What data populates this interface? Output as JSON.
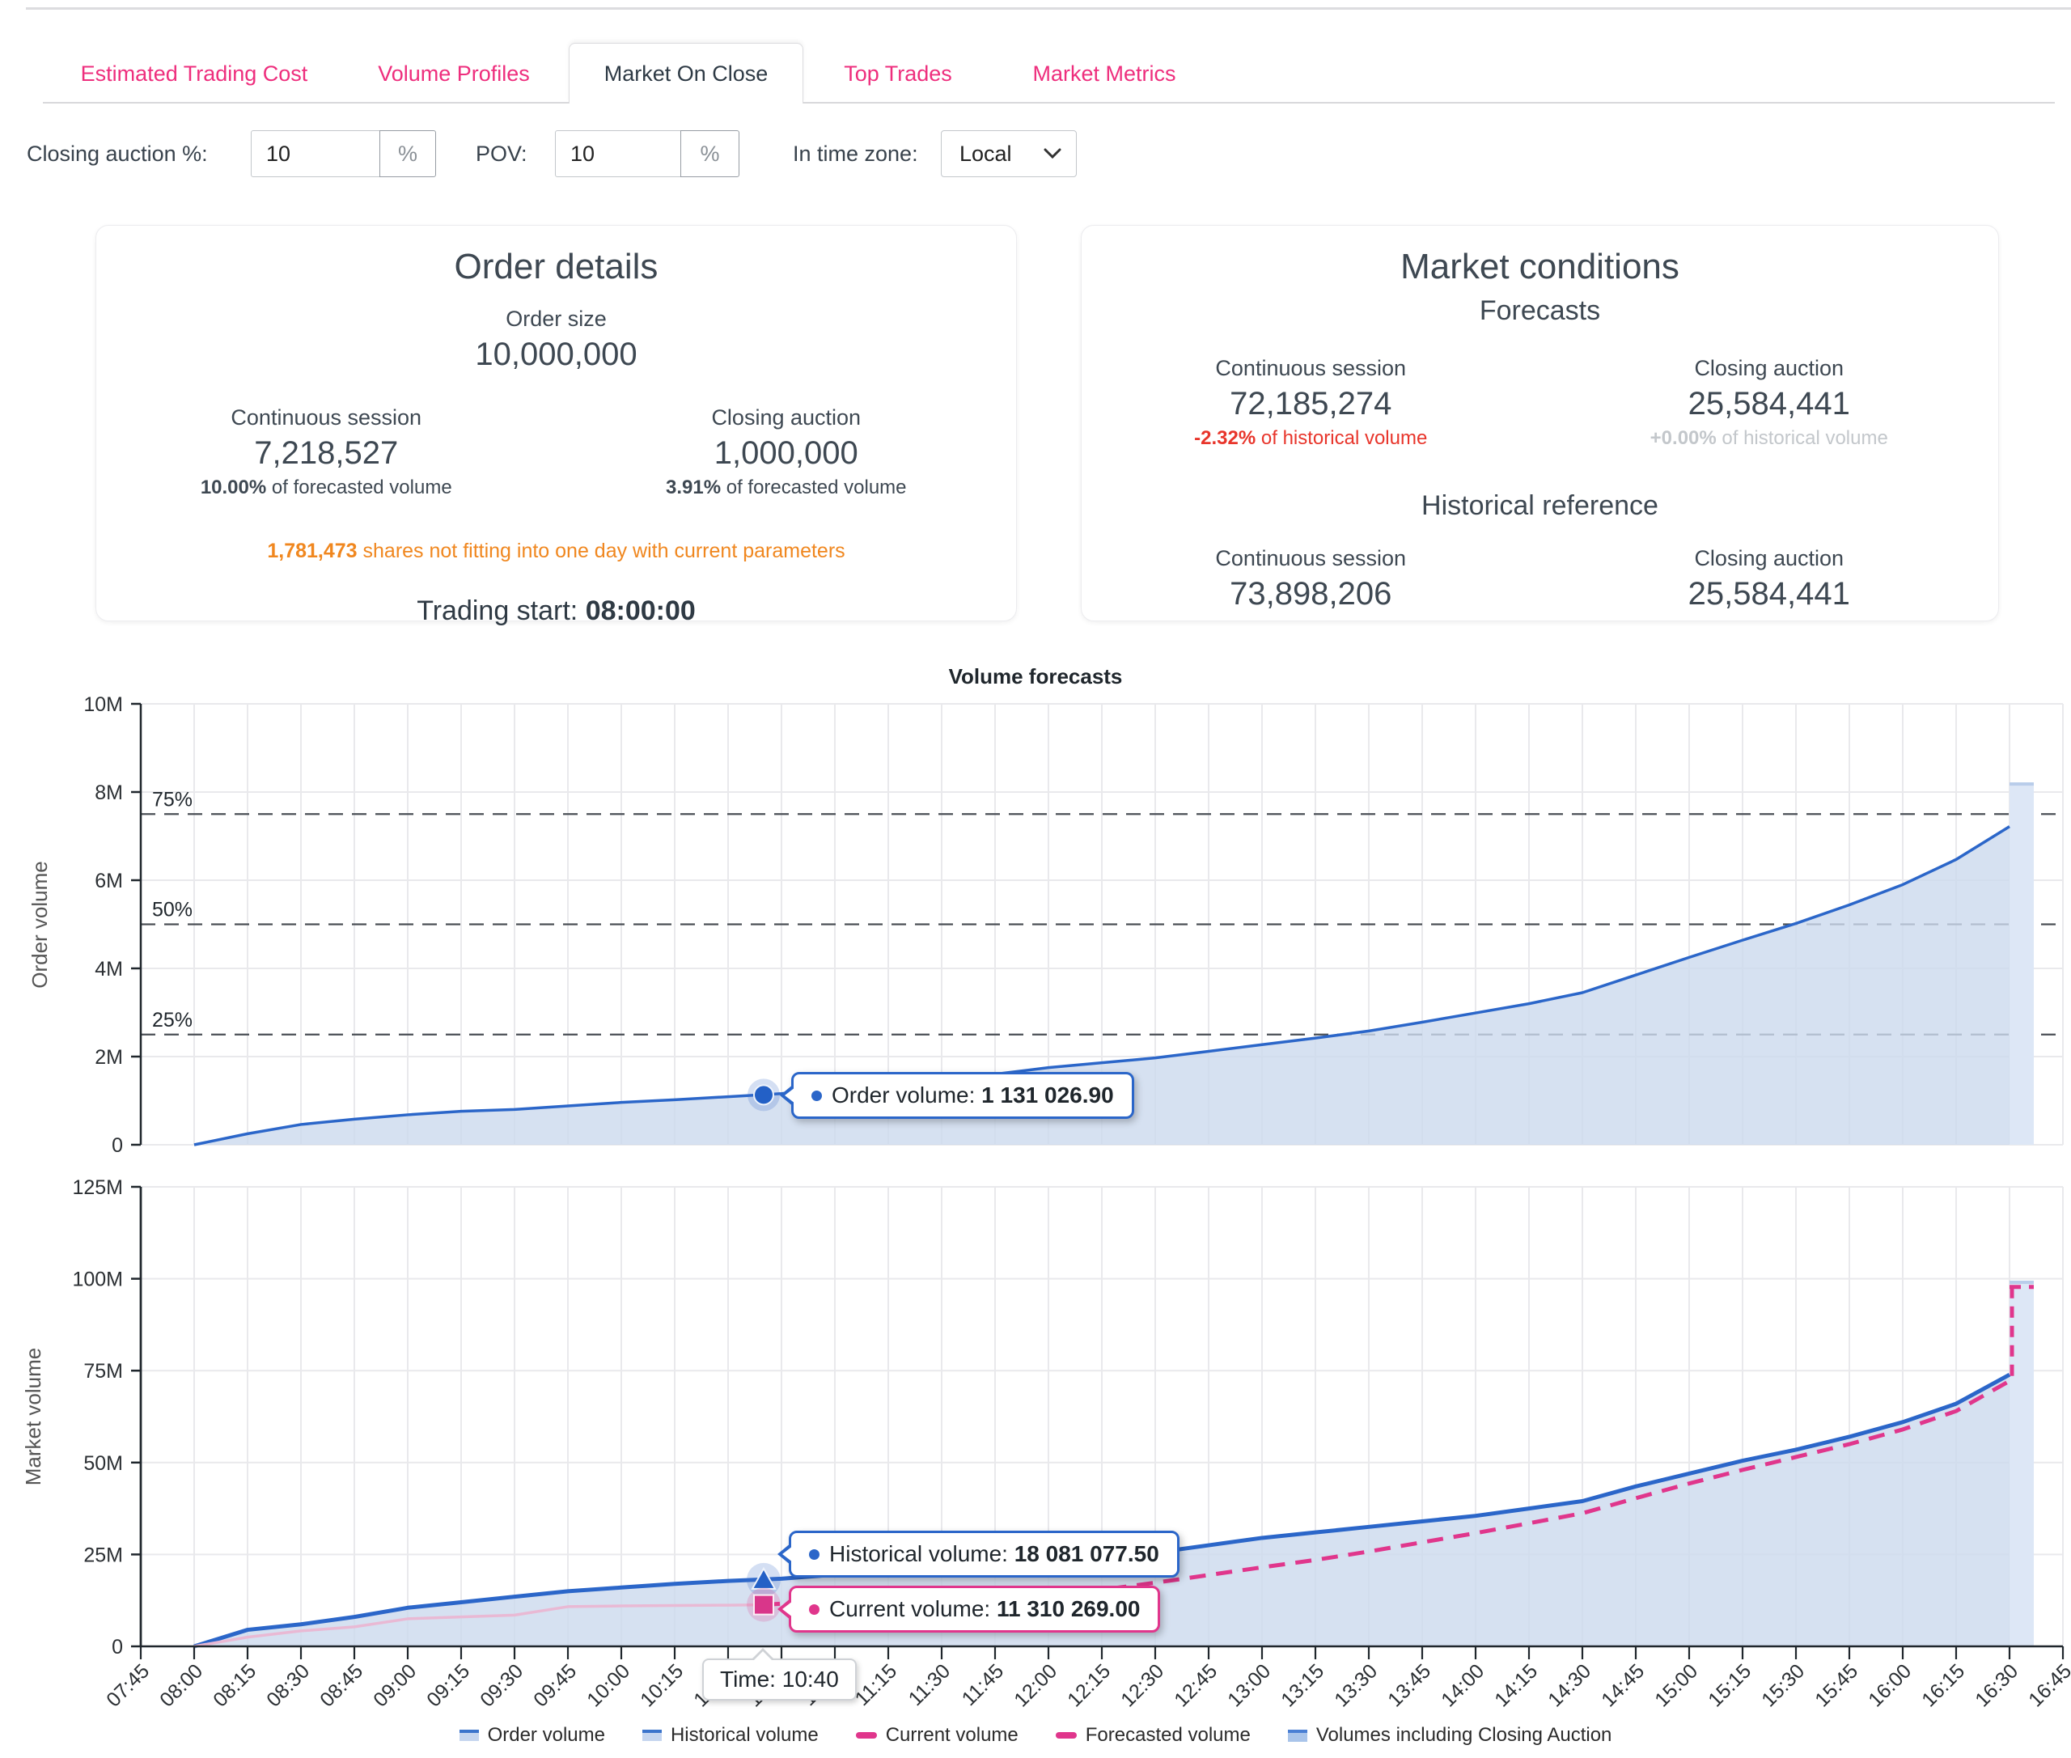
{
  "tabs": {
    "items": [
      {
        "label": "Estimated Trading Cost",
        "active": false
      },
      {
        "label": "Volume Profiles",
        "active": false
      },
      {
        "label": "Market On Close",
        "active": true
      },
      {
        "label": "Top Trades",
        "active": false
      },
      {
        "label": "Market Metrics",
        "active": false
      }
    ]
  },
  "controls": {
    "closing_auction": {
      "label": "Closing auction %:",
      "value": "10",
      "suffix": "%"
    },
    "pov": {
      "label": "POV:",
      "value": "10",
      "suffix": "%"
    },
    "timezone": {
      "label": "In time zone:",
      "value": "Local"
    }
  },
  "cards": {
    "order_details": {
      "title": "Order details",
      "order_size_label": "Order size",
      "order_size_value": "10,000,000",
      "continuous": {
        "label": "Continuous session",
        "value": "7,218,527",
        "pct": "10.00%",
        "pct_rest": " of forecasted volume"
      },
      "closing": {
        "label": "Closing auction",
        "value": "1,000,000",
        "pct": "3.91%",
        "pct_rest": " of forecasted volume"
      },
      "warning_value": "1,781,473",
      "warning_rest": " shares not fitting into one day with current parameters",
      "trading_start_label": "Trading start: ",
      "trading_start_value": "08:00:00"
    },
    "market_conditions": {
      "title": "Market conditions",
      "forecasts_label": "Forecasts",
      "forecast_continuous": {
        "label": "Continuous session",
        "value": "72,185,274",
        "pct": "-2.32%",
        "pct_rest": " of historical volume"
      },
      "forecast_closing": {
        "label": "Closing auction",
        "value": "25,584,441",
        "pct": "+0.00%",
        "pct_rest": " of historical volume"
      },
      "historical_label": "Historical reference",
      "hist_continuous": {
        "label": "Continuous session",
        "value": "73,898,206"
      },
      "hist_closing": {
        "label": "Closing auction",
        "value": "25,584,441"
      }
    }
  },
  "chart": {
    "title": "Volume forecasts",
    "tooltips": {
      "order": {
        "label": "Order volume: ",
        "value": "1 131 026.90"
      },
      "historical": {
        "label": "Historical volume: ",
        "value": "18 081 077.50"
      },
      "current": {
        "label": "Current volume: ",
        "value": "11 310 269.00"
      },
      "time": {
        "label": "Time: ",
        "value": "10:40"
      }
    },
    "legend": [
      {
        "label": "Order volume",
        "swatch": "area"
      },
      {
        "label": "Historical volume",
        "swatch": "area"
      },
      {
        "label": "Current volume",
        "swatch": "dash"
      },
      {
        "label": "Forecasted volume",
        "swatch": "dash"
      },
      {
        "label": "Volumes including Closing Auction",
        "swatch": "bar"
      }
    ],
    "colors": {
      "accent_pink": "#ee2e7d",
      "line_blue": "#2b66c9",
      "forecast_pink": "#e0368c",
      "current_pink": "#e9b9d4",
      "area_fill": "#ccd9ee",
      "bar_fill": "#dde7f6",
      "warning_orange": "#f0871f",
      "negative_red": "#e8352b"
    }
  },
  "chart_data": [
    {
      "type": "area",
      "title": "Volume forecasts",
      "ylabel": "Order volume",
      "ylim": [
        0,
        10000000
      ],
      "ytick_values": [
        0,
        2000000,
        4000000,
        6000000,
        8000000,
        10000000
      ],
      "ytick_labels": [
        "0",
        "2M",
        "4M",
        "6M",
        "8M",
        "10M"
      ],
      "x_axis_times": [
        "07:45",
        "08:00",
        "08:15",
        "08:30",
        "08:45",
        "09:00",
        "09:15",
        "09:30",
        "09:45",
        "10:00",
        "10:15",
        "10:30",
        "10:45",
        "11:00",
        "11:15",
        "11:30",
        "11:45",
        "12:00",
        "12:15",
        "12:30",
        "12:45",
        "13:00",
        "13:15",
        "13:30",
        "13:45",
        "14:00",
        "14:15",
        "14:30",
        "14:45",
        "15:00",
        "15:15",
        "15:30",
        "15:45",
        "16:00",
        "16:15",
        "16:30",
        "16:45"
      ],
      "reference_lines": [
        {
          "label": "25%",
          "value": 2500000
        },
        {
          "label": "50%",
          "value": 5000000
        },
        {
          "label": "75%",
          "value": 7500000
        }
      ],
      "series": [
        {
          "name": "Order volume",
          "times": [
            "08:00",
            "08:15",
            "08:30",
            "08:45",
            "09:00",
            "09:15",
            "09:30",
            "09:45",
            "10:00",
            "10:15",
            "10:30",
            "10:45",
            "11:00",
            "11:15",
            "11:30",
            "11:45",
            "12:00",
            "12:15",
            "12:30",
            "12:45",
            "13:00",
            "13:15",
            "13:30",
            "13:45",
            "14:00",
            "14:15",
            "14:30",
            "14:45",
            "15:00",
            "15:15",
            "15:30",
            "15:45",
            "16:00",
            "16:15",
            "16:30"
          ],
          "values": [
            0,
            250000,
            460000,
            580000,
            680000,
            760000,
            800000,
            880000,
            960000,
            1020000,
            1090000,
            1160000,
            1290000,
            1380000,
            1470000,
            1600000,
            1750000,
            1860000,
            1970000,
            2120000,
            2270000,
            2420000,
            2580000,
            2780000,
            2990000,
            3200000,
            3450000,
            3850000,
            4250000,
            4640000,
            5020000,
            5440000,
            5900000,
            6470000,
            7218527
          ]
        }
      ],
      "closing_bar": {
        "time": "16:30",
        "value": 8218527
      },
      "marker": {
        "shape": "circle",
        "time": "10:40",
        "value": 1131026.9
      }
    },
    {
      "type": "area",
      "ylabel": "Market volume",
      "ylim": [
        0,
        125000000
      ],
      "ytick_values": [
        0,
        25000000,
        50000000,
        75000000,
        100000000,
        125000000
      ],
      "ytick_labels": [
        "0",
        "25M",
        "50M",
        "75M",
        "100M",
        "125M"
      ],
      "series": [
        {
          "name": "Historical volume",
          "times": [
            "08:00",
            "08:15",
            "08:30",
            "08:45",
            "09:00",
            "09:15",
            "09:30",
            "09:45",
            "10:00",
            "10:15",
            "10:30",
            "10:45",
            "11:00",
            "11:15",
            "11:30",
            "11:45",
            "12:00",
            "12:15",
            "12:30",
            "12:45",
            "13:00",
            "13:15",
            "13:30",
            "13:45",
            "14:00",
            "14:15",
            "14:30",
            "14:45",
            "15:00",
            "15:15",
            "15:30",
            "15:45",
            "16:00",
            "16:15",
            "16:30"
          ],
          "values": [
            0,
            4500000,
            6000000,
            8000000,
            10500000,
            12000000,
            13500000,
            15000000,
            16000000,
            17000000,
            17800000,
            18400000,
            19500000,
            20300000,
            21200000,
            22200000,
            23200000,
            24200000,
            25500000,
            27500000,
            29500000,
            31000000,
            32500000,
            34000000,
            35500000,
            37500000,
            39500000,
            43500000,
            47000000,
            50500000,
            53500000,
            57000000,
            61000000,
            66000000,
            73898206
          ]
        },
        {
          "name": "Current volume",
          "times": [
            "08:00",
            "08:15",
            "08:30",
            "08:45",
            "09:00",
            "09:15",
            "09:30",
            "09:45",
            "10:00",
            "10:15",
            "10:30",
            "10:40"
          ],
          "values": [
            0,
            2500000,
            4200000,
            5300000,
            7500000,
            8000000,
            8500000,
            10800000,
            11000000,
            11100000,
            11200000,
            11310269
          ]
        },
        {
          "name": "Forecasted volume",
          "times": [
            "10:40",
            "10:45",
            "11:00",
            "11:15",
            "11:30",
            "11:45",
            "12:00",
            "12:15",
            "12:30",
            "12:45",
            "13:00",
            "13:15",
            "13:30",
            "13:45",
            "14:00",
            "14:15",
            "14:30",
            "14:45",
            "15:00",
            "15:15",
            "15:30",
            "15:45",
            "16:00",
            "16:15",
            "16:30"
          ],
          "values": [
            11310269,
            11600000,
            12300000,
            13000000,
            13700000,
            14300000,
            14900000,
            15400000,
            17300000,
            19400000,
            21500000,
            23500000,
            25800000,
            28300000,
            30800000,
            33500000,
            36200000,
            40300000,
            44300000,
            48000000,
            51500000,
            55000000,
            59000000,
            64000000,
            72185274
          ]
        }
      ],
      "closing_bar": {
        "time": "16:30",
        "value": 99482647,
        "forecast_value": 97769715
      },
      "markers": [
        {
          "shape": "triangle",
          "series": "Historical volume",
          "time": "10:40",
          "value": 18081077.5
        },
        {
          "shape": "square",
          "series": "Current volume",
          "time": "10:40",
          "value": 11310269
        }
      ]
    }
  ]
}
